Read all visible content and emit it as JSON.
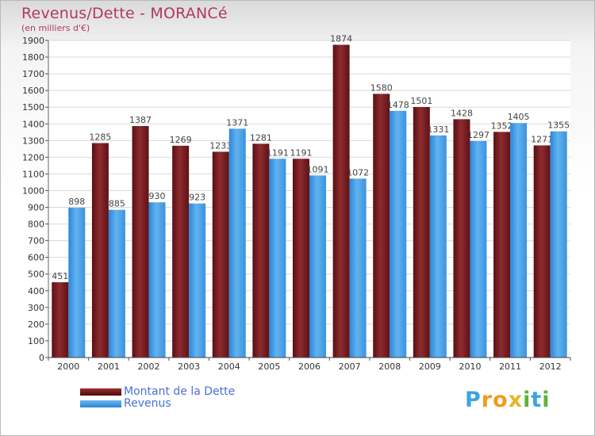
{
  "header": {
    "title": "Revenus/Dette - MORANCé",
    "subtitle": "(en milliers d'€)"
  },
  "chart_data": {
    "type": "bar",
    "categories": [
      "2000",
      "2001",
      "2002",
      "2003",
      "2004",
      "2005",
      "2006",
      "2007",
      "2008",
      "2009",
      "2010",
      "2011",
      "2012"
    ],
    "series": [
      {
        "name": "Montant de la Dette",
        "color": "#6b1719",
        "values": [
          451,
          1285,
          1387,
          1269,
          1233,
          1281,
          1191,
          1874,
          1580,
          1501,
          1428,
          1352,
          1271
        ],
        "labels": [
          "451",
          "1285",
          "1387",
          "1269",
          "1233",
          "1281",
          "1191",
          "1874",
          "1580",
          "1501",
          "1428",
          "1352",
          "1271"
        ]
      },
      {
        "name": "Revenus",
        "color": "#2a86d6",
        "values": [
          898,
          885,
          930,
          923,
          1371,
          1191,
          1091,
          1072,
          1478,
          1331,
          1297,
          1405,
          1355
        ],
        "labels": [
          "898",
          "885",
          "930",
          "923",
          "1371",
          "1191",
          "1091",
          "1072",
          "1478",
          "1331",
          "1297",
          "1405",
          "1355"
        ]
      }
    ],
    "yticks": [
      0,
      100,
      200,
      300,
      400,
      500,
      600,
      700,
      800,
      900,
      1000,
      1100,
      1200,
      1300,
      1400,
      1500,
      1600,
      1700,
      1800,
      1900
    ],
    "ylim": [
      0,
      1900
    ],
    "grid": true,
    "legend_position": "bottom-left"
  },
  "legend": {
    "items": [
      {
        "label": "Montant de la Dette",
        "color": "#6b1719"
      },
      {
        "label": "Revenus",
        "color": "#3f9ce6"
      }
    ]
  },
  "logo": {
    "letters": [
      "P",
      "r",
      "o",
      "x",
      "i",
      "t",
      "i"
    ],
    "colors": [
      "#3fa3e0",
      "#f29a1f",
      "#f29a1f",
      "#e5b62a",
      "#5cb33a",
      "#3fa3e0",
      "#5cb33a"
    ]
  }
}
